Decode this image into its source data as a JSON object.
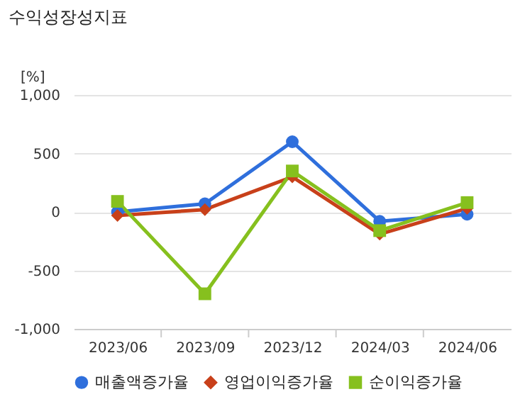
{
  "chart_data": {
    "type": "line",
    "title": "수익성장성지표",
    "ylabel": "[%]",
    "categories": [
      "2023/06",
      "2023/09",
      "2023/12",
      "2024/03",
      "2024/06"
    ],
    "series": [
      {
        "name": "매출액증가율",
        "color": "#2f6fdc",
        "marker": "circle",
        "values": [
          0,
          70,
          600,
          -80,
          -20
        ]
      },
      {
        "name": "영업이익증가율",
        "color": "#c8401a",
        "marker": "diamond",
        "values": [
          -30,
          20,
          300,
          -190,
          30
        ]
      },
      {
        "name": "순이익증가율",
        "color": "#86c01e",
        "marker": "square",
        "values": [
          90,
          -700,
          350,
          -160,
          80
        ]
      }
    ],
    "ylim": [
      -1000,
      1000
    ],
    "yticks": [
      {
        "value": -1000,
        "label": "-1,000"
      },
      {
        "value": -500,
        "label": "-500"
      },
      0,
      500,
      {
        "value": 1000,
        "label": "1,000"
      }
    ],
    "grid": "y",
    "legend": "bottom"
  }
}
